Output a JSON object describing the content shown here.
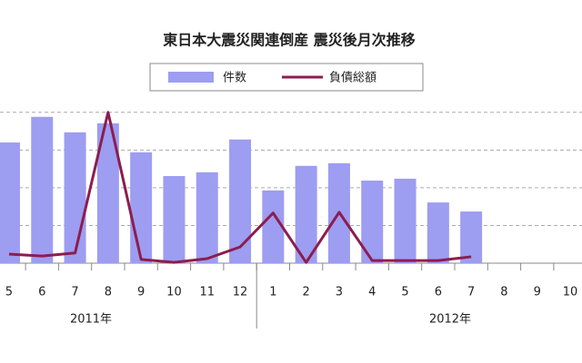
{
  "chart_data": {
    "type": "bar_line",
    "title": "東日本大震災関連倒産 震災後月次推移",
    "categories": [
      "5",
      "6",
      "7",
      "8",
      "9",
      "10",
      "11",
      "12",
      "1",
      "2",
      "3",
      "4",
      "5",
      "6",
      "7",
      "8",
      "9",
      "10"
    ],
    "groups": [
      {
        "label": "2011年",
        "count": 8
      },
      {
        "label": "2012年",
        "count": 10
      }
    ],
    "series": [
      {
        "name": "件数",
        "kind": "bar",
        "color": "#9d9df2",
        "values": [
          3.2,
          3.88,
          3.47,
          3.71,
          2.94,
          2.31,
          2.41,
          3.28,
          1.93,
          2.58,
          2.65,
          2.19,
          2.24,
          1.61,
          1.37,
          null,
          null,
          null
        ]
      },
      {
        "name": "負債総額",
        "kind": "line",
        "color": "#8c1d4f",
        "values": [
          0.24,
          0.19,
          0.27,
          4.0,
          0.1,
          0.02,
          0.12,
          0.43,
          1.33,
          0.02,
          1.35,
          0.07,
          0.07,
          0.07,
          0.17,
          null,
          null,
          null
        ]
      }
    ],
    "ylim": [
      0,
      4.5
    ],
    "gridlines": [
      1,
      2,
      3,
      4
    ],
    "grid": true
  }
}
